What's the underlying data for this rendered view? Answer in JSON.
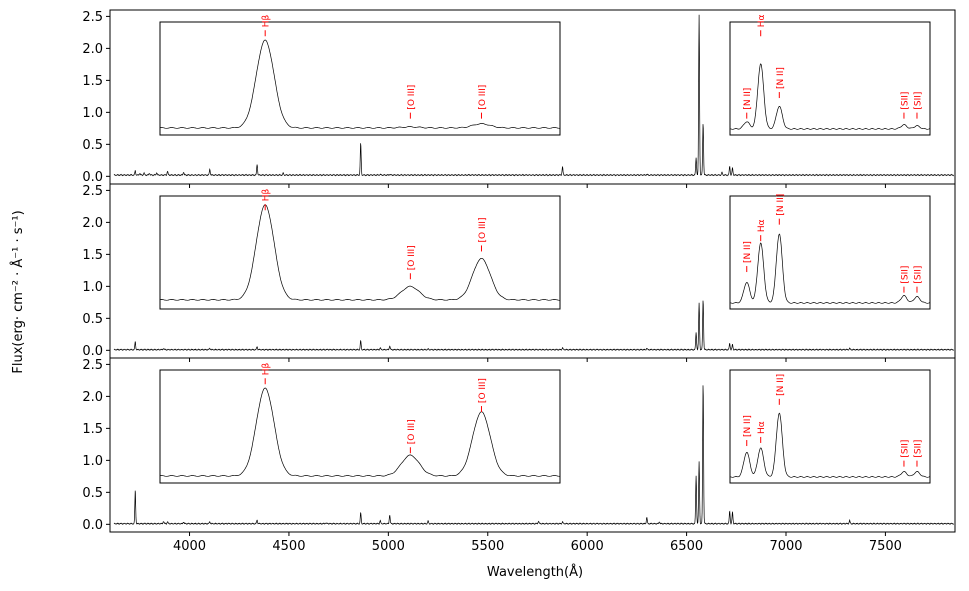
{
  "chart_data": {
    "type": "line",
    "xlabel": "Wavelength(Å)",
    "ylabel": "Flux(erg· cm⁻² · Å⁻¹ · s⁻¹)",
    "xlim": [
      3600,
      7850
    ],
    "ylim": [
      -0.12,
      2.6
    ],
    "xticks": [
      4000,
      4500,
      5000,
      5500,
      6000,
      6500,
      7000,
      7500
    ],
    "yticks": [
      0.0,
      0.5,
      1.0,
      1.5,
      2.0,
      2.5
    ],
    "line_color": "#000000",
    "label_color": "#ff0000",
    "inset_left_labels": [
      "Hβ",
      "[O III]",
      "[O III]"
    ],
    "inset_right_labels": [
      "[N II]",
      "Hα",
      "[N II]",
      "[SII]",
      "[SII]"
    ],
    "panels": [
      {
        "name": "top",
        "continuum": 0.02,
        "lines": [
          {
            "x": 3727,
            "a": 0.07
          },
          {
            "x": 3750,
            "a": 0.03
          },
          {
            "x": 3771,
            "a": 0.03
          },
          {
            "x": 3798,
            "a": 0.03
          },
          {
            "x": 3835,
            "a": 0.04
          },
          {
            "x": 3889,
            "a": 0.06
          },
          {
            "x": 3970,
            "a": 0.05
          },
          {
            "x": 4102,
            "a": 0.09
          },
          {
            "x": 4340,
            "a": 0.17
          },
          {
            "x": 4471,
            "a": 0.03
          },
          {
            "x": 4861,
            "a": 0.5
          },
          {
            "x": 4959,
            "a": 0.01
          },
          {
            "x": 5007,
            "a": 0.01
          },
          {
            "x": 5876,
            "a": 0.13
          },
          {
            "x": 6300,
            "a": 0.01
          },
          {
            "x": 6548,
            "a": 0.27
          },
          {
            "x": 6563,
            "a": 2.5
          },
          {
            "x": 6583,
            "a": 0.82
          },
          {
            "x": 6678,
            "a": 0.04
          },
          {
            "x": 6717,
            "a": 0.14
          },
          {
            "x": 6731,
            "a": 0.11
          }
        ],
        "inset_left": {
          "peaks": [
            {
              "x": 4861,
              "a": 0.85
            },
            {
              "x": 4959,
              "a": 0.01
            },
            {
              "x": 5007,
              "a": 0.04
            }
          ],
          "baseline": 0.03,
          "label_heights": [
            0.92,
            0.12,
            0.12
          ]
        },
        "inset_right": {
          "peaks": [
            {
              "x": 6548,
              "a": 0.07
            },
            {
              "x": 6563,
              "a": 0.63
            },
            {
              "x": 6583,
              "a": 0.22
            },
            {
              "x": 6717,
              "a": 0.04
            },
            {
              "x": 6731,
              "a": 0.03
            }
          ],
          "baseline": 0.02,
          "label_heights": [
            0.12,
            0.92,
            0.32,
            0.12,
            0.12
          ]
        }
      },
      {
        "name": "middle",
        "continuum": 0.01,
        "lines": [
          {
            "x": 3727,
            "a": 0.13
          },
          {
            "x": 3869,
            "a": 0.02
          },
          {
            "x": 4102,
            "a": 0.02
          },
          {
            "x": 4340,
            "a": 0.05
          },
          {
            "x": 4861,
            "a": 0.14
          },
          {
            "x": 4959,
            "a": 0.03
          },
          {
            "x": 5007,
            "a": 0.06
          },
          {
            "x": 5200,
            "a": 0.01
          },
          {
            "x": 5876,
            "a": 0.03
          },
          {
            "x": 6300,
            "a": 0.02
          },
          {
            "x": 6548,
            "a": 0.27
          },
          {
            "x": 6563,
            "a": 0.73
          },
          {
            "x": 6583,
            "a": 0.79
          },
          {
            "x": 6717,
            "a": 0.1
          },
          {
            "x": 6731,
            "a": 0.08
          },
          {
            "x": 7320,
            "a": 0.02
          }
        ],
        "inset_left": {
          "peaks": [
            {
              "x": 4861,
              "a": 0.92
            },
            {
              "x": 4959,
              "a": 0.13
            },
            {
              "x": 5007,
              "a": 0.4
            }
          ],
          "baseline": 0.05,
          "label_heights": [
            0.92,
            0.25,
            0.52
          ]
        },
        "inset_right": {
          "peaks": [
            {
              "x": 6548,
              "a": 0.2
            },
            {
              "x": 6563,
              "a": 0.58
            },
            {
              "x": 6583,
              "a": 0.67
            },
            {
              "x": 6717,
              "a": 0.07
            },
            {
              "x": 6731,
              "a": 0.06
            }
          ],
          "baseline": 0.02,
          "label_heights": [
            0.32,
            0.62,
            0.78,
            0.12,
            0.12
          ]
        }
      },
      {
        "name": "bottom",
        "continuum": 0.01,
        "lines": [
          {
            "x": 3727,
            "a": 0.53
          },
          {
            "x": 3869,
            "a": 0.04
          },
          {
            "x": 3889,
            "a": 0.03
          },
          {
            "x": 3970,
            "a": 0.03
          },
          {
            "x": 4102,
            "a": 0.03
          },
          {
            "x": 4340,
            "a": 0.06
          },
          {
            "x": 4686,
            "a": 0.01
          },
          {
            "x": 4861,
            "a": 0.17
          },
          {
            "x": 4959,
            "a": 0.05
          },
          {
            "x": 5007,
            "a": 0.14
          },
          {
            "x": 5200,
            "a": 0.04
          },
          {
            "x": 5755,
            "a": 0.04
          },
          {
            "x": 5876,
            "a": 0.03
          },
          {
            "x": 6300,
            "a": 0.1
          },
          {
            "x": 6363,
            "a": 0.03
          },
          {
            "x": 6548,
            "a": 0.75
          },
          {
            "x": 6563,
            "a": 0.97
          },
          {
            "x": 6583,
            "a": 2.22
          },
          {
            "x": 6717,
            "a": 0.2
          },
          {
            "x": 6731,
            "a": 0.18
          },
          {
            "x": 7320,
            "a": 0.05
          }
        ],
        "inset_left": {
          "peaks": [
            {
              "x": 4861,
              "a": 0.85
            },
            {
              "x": 4959,
              "a": 0.2
            },
            {
              "x": 5007,
              "a": 0.62
            }
          ],
          "baseline": 0.03,
          "label_heights": [
            0.92,
            0.25,
            0.65
          ]
        },
        "inset_right": {
          "peaks": [
            {
              "x": 6548,
              "a": 0.24
            },
            {
              "x": 6563,
              "a": 0.28
            },
            {
              "x": 6583,
              "a": 0.62
            },
            {
              "x": 6717,
              "a": 0.05
            },
            {
              "x": 6731,
              "a": 0.05
            }
          ],
          "baseline": 0.02,
          "label_heights": [
            0.32,
            0.35,
            0.72,
            0.12,
            0.12
          ]
        }
      }
    ]
  }
}
